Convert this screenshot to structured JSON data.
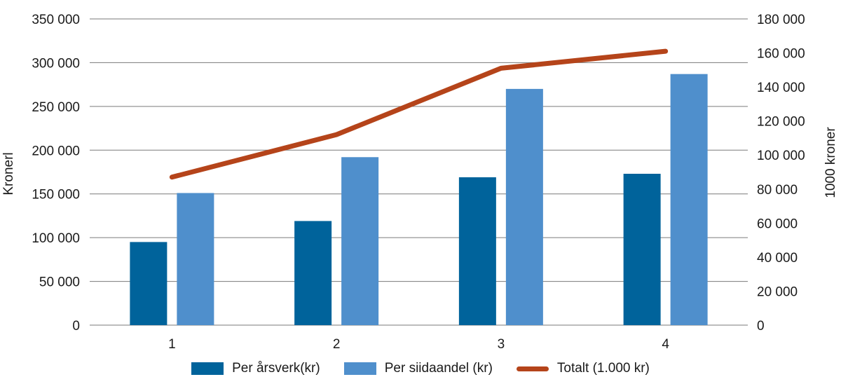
{
  "chart_data": {
    "type": "bar",
    "categories": [
      "1",
      "2",
      "3",
      "4"
    ],
    "series": [
      {
        "name": "Per årsverk(kr)",
        "kind": "bar",
        "axis": "left",
        "color": "#00639b",
        "values": [
          95000,
          119000,
          169000,
          173000
        ]
      },
      {
        "name": "Per siidaandel (kr)",
        "kind": "bar",
        "axis": "left",
        "color": "#4f8fcc",
        "values": [
          151000,
          192000,
          270000,
          287000
        ]
      },
      {
        "name": "Totalt (1.000 kr)",
        "kind": "line",
        "axis": "right",
        "color": "#b5441a",
        "values": [
          87000,
          112000,
          151000,
          161000
        ]
      }
    ],
    "ylabel": "Kronerl",
    "y2label": "1000 kroner",
    "ylim": [
      0,
      350000
    ],
    "y2lim": [
      0,
      180000
    ],
    "yticks": [
      "0",
      "50 000",
      "100 000",
      "150 000",
      "200 000",
      "250 000",
      "300 000",
      "350 000"
    ],
    "y2ticks": [
      "0",
      "20 000",
      "40 000",
      "60 000",
      "80 000",
      "100 000",
      "120 000",
      "140 000",
      "160 000",
      "180 000"
    ],
    "grid": true,
    "legend_position": "bottom"
  }
}
